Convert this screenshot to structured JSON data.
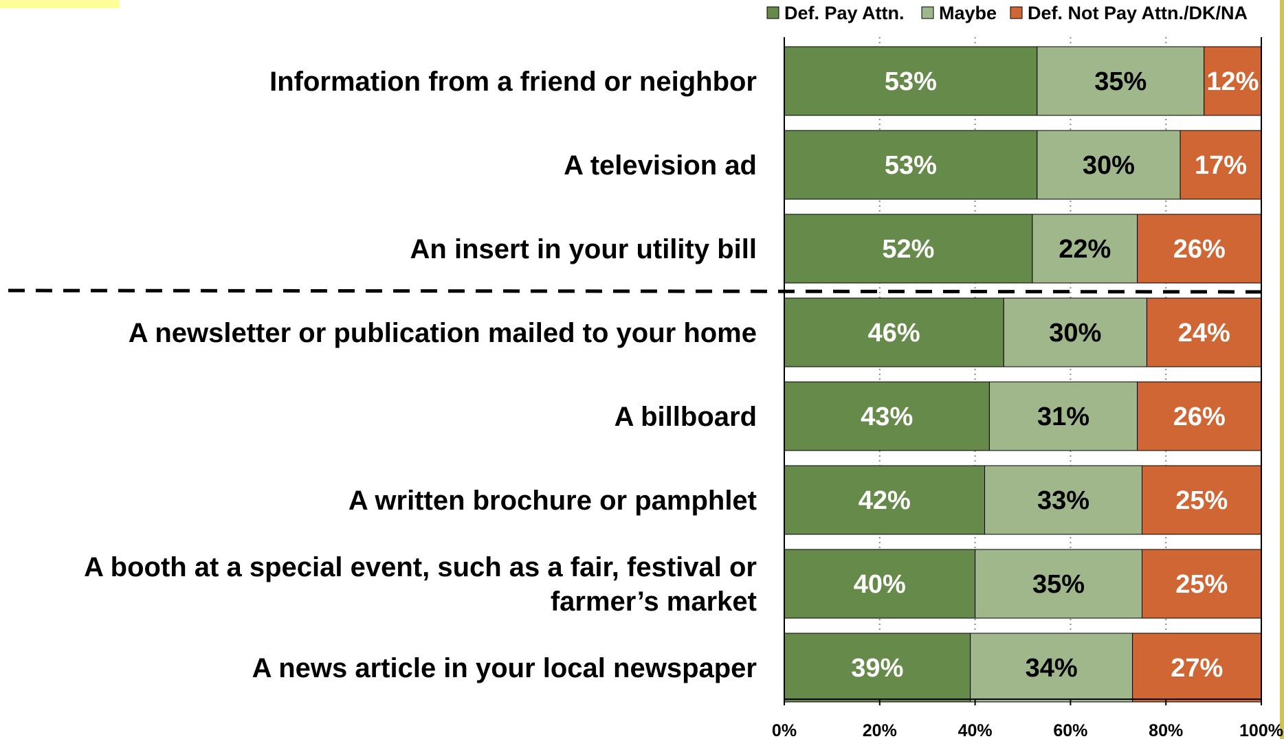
{
  "chart_data": {
    "type": "bar",
    "orientation": "horizontal",
    "stacked": true,
    "categories": [
      [
        "Information from a friend or neighbor"
      ],
      [
        "A television ad"
      ],
      [
        "An insert in your utility bill"
      ],
      [
        "A newsletter or publication mailed to your home"
      ],
      [
        "A billboard"
      ],
      [
        "A written brochure or pamphlet"
      ],
      [
        "A booth at a special event, such as a fair, festival or",
        "farmer’s market"
      ],
      [
        "A news article in your local newspaper"
      ]
    ],
    "series": [
      {
        "name": "Def. Pay Attn.",
        "color": "#668a4a",
        "label_color": "#ffffff",
        "values": [
          53,
          53,
          52,
          46,
          43,
          42,
          40,
          39
        ],
        "labels": [
          "53%",
          "53%",
          "52%",
          "46%",
          "43%",
          "42%",
          "40%",
          "39%"
        ]
      },
      {
        "name": "Maybe",
        "color": "#9fb78a",
        "label_color": "#000000",
        "values": [
          35,
          30,
          22,
          30,
          31,
          33,
          35,
          34
        ],
        "labels": [
          "35%",
          "30%",
          "22%",
          "30%",
          "31%",
          "33%",
          "35%",
          "34%"
        ]
      },
      {
        "name": "Def. Not Pay Attn./DK/NA",
        "color": "#cf6633",
        "label_color": "#ffffff",
        "values": [
          12,
          17,
          26,
          24,
          26,
          25,
          25,
          27
        ],
        "labels": [
          "12%",
          "17%",
          "26%",
          "24%",
          "26%",
          "25%",
          "25%",
          "27%"
        ]
      }
    ],
    "xlim": [
      0,
      100
    ],
    "x_ticks": [
      0,
      20,
      40,
      60,
      80,
      100
    ],
    "x_tick_labels": [
      "0%",
      "20%",
      "40%",
      "60%",
      "80%",
      "100%"
    ],
    "grid": "vertical dotted",
    "legend": {
      "placement": "top-right"
    },
    "annotations": [
      {
        "type": "dashed-separator",
        "after_category_index": 2
      }
    ]
  },
  "colors": {
    "accent_highlight": "#ffff99",
    "right_edge_stripe": "#d4c24a",
    "separator": "#000000"
  }
}
